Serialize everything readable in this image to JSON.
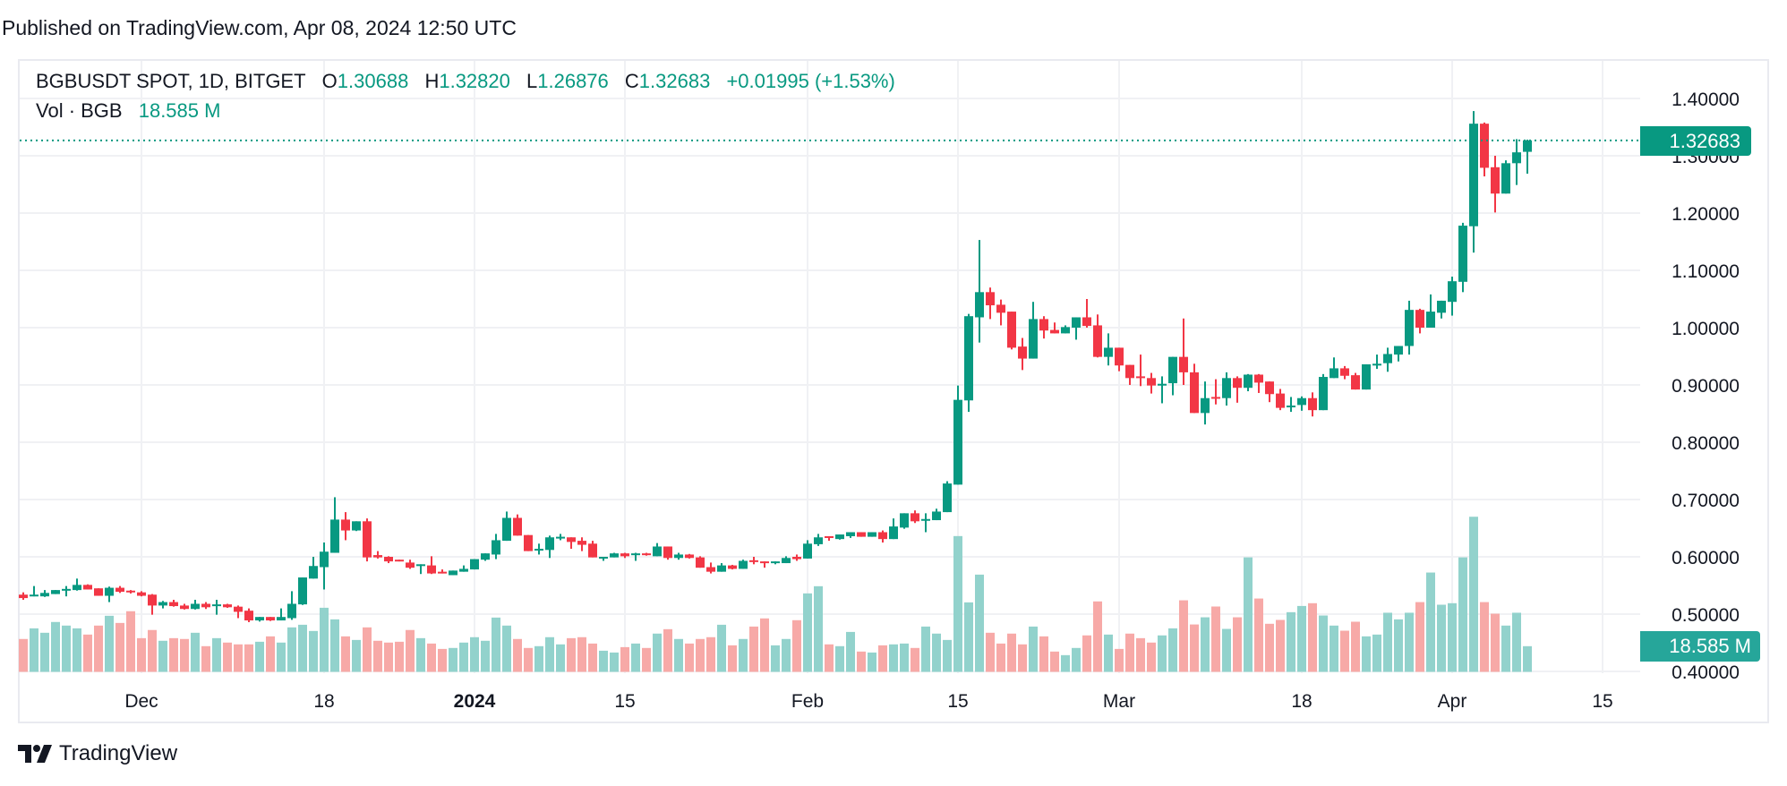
{
  "header": {
    "published": "Published on TradingView.com, Apr 08, 2024 12:50 UTC"
  },
  "legend": {
    "symbol": "BGBUSDT SPOT, 1D, BITGET",
    "open_label": "O",
    "open": "1.30688",
    "high_label": "H",
    "high": "1.32820",
    "low_label": "L",
    "low": "1.26876",
    "close_label": "C",
    "close": "1.32683",
    "change": "+0.01995 (+1.53%)",
    "vol_label": "Vol · BGB",
    "vol_value": "18.585 M"
  },
  "badges": {
    "last_price": "1.32683",
    "last_volume": "18.585 M"
  },
  "footer": {
    "brand": "TradingView"
  },
  "colors": {
    "up": "#089981",
    "down": "#F23645",
    "vol_up": "#92d2cc",
    "vol_down": "#f7a9a7",
    "grid": "#f0f1f4",
    "last_price": "#089981",
    "volume_badge": "#26a69a"
  },
  "chart_data": {
    "type": "candlestick",
    "interval": "1D",
    "symbol": "BGBUSDT",
    "y_axis": {
      "range": [
        0.4,
        1.4
      ],
      "ticks": [
        {
          "value": 1.4,
          "label": "1.40000"
        },
        {
          "value": 1.3,
          "label": "1.30000"
        },
        {
          "value": 1.2,
          "label": "1.20000"
        },
        {
          "value": 1.1,
          "label": "1.10000"
        },
        {
          "value": 1.0,
          "label": "1.00000"
        },
        {
          "value": 0.9,
          "label": "0.90000"
        },
        {
          "value": 0.8,
          "label": "0.80000"
        },
        {
          "value": 0.7,
          "label": "0.70000"
        },
        {
          "value": 0.6,
          "label": "0.60000"
        },
        {
          "value": 0.5,
          "label": "0.50000"
        },
        {
          "value": 0.4,
          "label": "0.40000"
        }
      ]
    },
    "x_axis": {
      "ticks": [
        {
          "date": "2023-12-01",
          "label": "Dec",
          "bold": false
        },
        {
          "date": "2023-12-18",
          "label": "18",
          "bold": false
        },
        {
          "date": "2024-01-01",
          "label": "2024",
          "bold": true
        },
        {
          "date": "2024-01-15",
          "label": "15",
          "bold": false
        },
        {
          "date": "2024-02-01",
          "label": "Feb",
          "bold": false
        },
        {
          "date": "2024-02-15",
          "label": "15",
          "bold": false
        },
        {
          "date": "2024-03-01",
          "label": "Mar",
          "bold": false
        },
        {
          "date": "2024-03-18",
          "label": "18",
          "bold": false
        },
        {
          "date": "2024-04-01",
          "label": "Apr",
          "bold": false
        },
        {
          "date": "2024-04-15",
          "label": "15",
          "bold": false
        }
      ]
    },
    "grid": true,
    "last_price": 1.32683,
    "columns": [
      "date",
      "open",
      "high",
      "low",
      "close",
      "volume_M"
    ],
    "rows": [
      [
        "2023-11-20",
        0.534,
        0.538,
        0.525,
        0.528,
        23.8
      ],
      [
        "2023-11-21",
        0.531,
        0.549,
        0.531,
        0.534,
        31.5
      ],
      [
        "2023-11-22",
        0.531,
        0.542,
        0.53,
        0.537,
        28.3
      ],
      [
        "2023-11-23",
        0.535,
        0.542,
        0.535,
        0.542,
        36.1
      ],
      [
        "2023-11-24",
        0.542,
        0.549,
        0.531,
        0.544,
        33.5
      ],
      [
        "2023-11-25",
        0.542,
        0.562,
        0.541,
        0.551,
        31.5
      ],
      [
        "2023-11-26",
        0.551,
        0.552,
        0.543,
        0.543,
        27.0
      ],
      [
        "2023-11-27",
        0.545,
        0.545,
        0.532,
        0.532,
        33.5
      ],
      [
        "2023-11-28",
        0.532,
        0.548,
        0.521,
        0.546,
        40.6
      ],
      [
        "2023-11-29",
        0.546,
        0.549,
        0.537,
        0.539,
        35.4
      ],
      [
        "2023-11-30",
        0.541,
        0.542,
        0.536,
        0.538,
        43.9
      ],
      [
        "2023-12-01",
        0.538,
        0.54,
        0.531,
        0.532,
        24.4
      ],
      [
        "2023-12-02",
        0.534,
        0.535,
        0.499,
        0.515,
        30.3
      ],
      [
        "2023-12-03",
        0.515,
        0.523,
        0.51,
        0.521,
        22.5
      ],
      [
        "2023-12-04",
        0.521,
        0.525,
        0.513,
        0.514,
        24.4
      ],
      [
        "2023-12-05",
        0.515,
        0.518,
        0.508,
        0.509,
        23.8
      ],
      [
        "2023-12-06",
        0.509,
        0.525,
        0.508,
        0.518,
        28.3
      ],
      [
        "2023-12-07",
        0.518,
        0.521,
        0.509,
        0.512,
        18.6
      ],
      [
        "2023-12-08",
        0.515,
        0.525,
        0.499,
        0.517,
        24.4
      ],
      [
        "2023-12-09",
        0.517,
        0.518,
        0.511,
        0.512,
        21.2
      ],
      [
        "2023-12-10",
        0.513,
        0.515,
        0.493,
        0.504,
        19.9
      ],
      [
        "2023-12-11",
        0.506,
        0.51,
        0.486,
        0.489,
        19.9
      ],
      [
        "2023-12-12",
        0.489,
        0.495,
        0.487,
        0.495,
        21.8
      ],
      [
        "2023-12-13",
        0.495,
        0.495,
        0.488,
        0.489,
        25.7
      ],
      [
        "2023-12-14",
        0.489,
        0.51,
        0.489,
        0.495,
        21.2
      ],
      [
        "2023-12-15",
        0.493,
        0.54,
        0.49,
        0.518,
        32.2
      ],
      [
        "2023-12-16",
        0.517,
        0.564,
        0.516,
        0.564,
        34.1
      ],
      [
        "2023-12-17",
        0.562,
        0.6,
        0.562,
        0.584,
        29.6
      ],
      [
        "2023-12-18",
        0.582,
        0.625,
        0.543,
        0.609,
        46.4
      ],
      [
        "2023-12-19",
        0.607,
        0.704,
        0.607,
        0.665,
        38.0
      ],
      [
        "2023-12-20",
        0.665,
        0.678,
        0.629,
        0.646,
        25.7
      ],
      [
        "2023-12-21",
        0.646,
        0.662,
        0.645,
        0.662,
        23.1
      ],
      [
        "2023-12-22",
        0.662,
        0.667,
        0.592,
        0.599,
        32.2
      ],
      [
        "2023-12-23",
        0.603,
        0.61,
        0.597,
        0.599,
        22.5
      ],
      [
        "2023-12-24",
        0.6,
        0.601,
        0.589,
        0.592,
        21.2
      ],
      [
        "2023-12-25",
        0.595,
        0.595,
        0.592,
        0.592,
        21.8
      ],
      [
        "2023-12-26",
        0.59,
        0.595,
        0.579,
        0.581,
        30.3
      ],
      [
        "2023-12-27",
        0.585,
        0.587,
        0.57,
        0.587,
        24.4
      ],
      [
        "2023-12-28",
        0.585,
        0.601,
        0.57,
        0.571,
        20.5
      ],
      [
        "2023-12-29",
        0.574,
        0.578,
        0.571,
        0.571,
        16.6
      ],
      [
        "2023-12-30",
        0.568,
        0.576,
        0.568,
        0.576,
        17.3
      ],
      [
        "2023-12-31",
        0.574,
        0.585,
        0.574,
        0.579,
        21.2
      ],
      [
        "2024-01-01",
        0.578,
        0.596,
        0.578,
        0.596,
        25.1
      ],
      [
        "2024-01-02",
        0.595,
        0.606,
        0.593,
        0.606,
        22.5
      ],
      [
        "2024-01-03",
        0.604,
        0.64,
        0.596,
        0.629,
        39.3
      ],
      [
        "2024-01-04",
        0.628,
        0.679,
        0.628,
        0.668,
        33.5
      ],
      [
        "2024-01-05",
        0.668,
        0.674,
        0.637,
        0.637,
        23.8
      ],
      [
        "2024-01-06",
        0.638,
        0.638,
        0.61,
        0.61,
        17.3
      ],
      [
        "2024-01-07",
        0.612,
        0.623,
        0.604,
        0.614,
        18.6
      ],
      [
        "2024-01-08",
        0.612,
        0.637,
        0.598,
        0.634,
        25.1
      ],
      [
        "2024-01-09",
        0.633,
        0.64,
        0.629,
        0.635,
        19.9
      ],
      [
        "2024-01-10",
        0.634,
        0.634,
        0.614,
        0.626,
        24.4
      ],
      [
        "2024-01-11",
        0.628,
        0.634,
        0.61,
        0.621,
        25.1
      ],
      [
        "2024-01-12",
        0.623,
        0.628,
        0.599,
        0.599,
        20.5
      ],
      [
        "2024-01-13",
        0.598,
        0.6,
        0.593,
        0.6,
        15.3
      ],
      [
        "2024-01-14",
        0.599,
        0.607,
        0.599,
        0.606,
        14.0
      ],
      [
        "2024-01-15",
        0.606,
        0.607,
        0.598,
        0.601,
        17.9
      ],
      [
        "2024-01-16",
        0.603,
        0.607,
        0.593,
        0.606,
        20.5
      ],
      [
        "2024-01-17",
        0.606,
        0.607,
        0.602,
        0.603,
        17.3
      ],
      [
        "2024-01-18",
        0.601,
        0.624,
        0.601,
        0.618,
        27.7
      ],
      [
        "2024-01-19",
        0.618,
        0.618,
        0.595,
        0.598,
        30.9
      ],
      [
        "2024-01-20",
        0.598,
        0.607,
        0.595,
        0.604,
        23.8
      ],
      [
        "2024-01-21",
        0.604,
        0.605,
        0.597,
        0.598,
        20.5
      ],
      [
        "2024-01-22",
        0.599,
        0.601,
        0.581,
        0.581,
        23.8
      ],
      [
        "2024-01-23",
        0.582,
        0.59,
        0.571,
        0.574,
        25.1
      ],
      [
        "2024-01-24",
        0.574,
        0.589,
        0.574,
        0.585,
        34.1
      ],
      [
        "2024-01-25",
        0.585,
        0.586,
        0.578,
        0.579,
        19.2
      ],
      [
        "2024-01-26",
        0.579,
        0.595,
        0.579,
        0.593,
        23.8
      ],
      [
        "2024-01-27",
        0.594,
        0.6,
        0.587,
        0.592,
        32.8
      ],
      [
        "2024-01-28",
        0.592,
        0.592,
        0.581,
        0.589,
        38.7
      ],
      [
        "2024-01-29",
        0.589,
        0.592,
        0.587,
        0.592,
        19.2
      ],
      [
        "2024-01-30",
        0.589,
        0.601,
        0.589,
        0.598,
        23.8
      ],
      [
        "2024-01-31",
        0.6,
        0.604,
        0.593,
        0.596,
        37.4
      ],
      [
        "2024-02-01",
        0.597,
        0.629,
        0.597,
        0.623,
        56.8
      ],
      [
        "2024-02-02",
        0.622,
        0.64,
        0.619,
        0.634,
        62.0
      ],
      [
        "2024-02-03",
        0.636,
        0.636,
        0.628,
        0.633,
        19.9
      ],
      [
        "2024-02-04",
        0.631,
        0.639,
        0.63,
        0.639,
        18.6
      ],
      [
        "2024-02-05",
        0.636,
        0.643,
        0.633,
        0.643,
        28.9
      ],
      [
        "2024-02-06",
        0.643,
        0.643,
        0.635,
        0.635,
        14.7
      ],
      [
        "2024-02-07",
        0.635,
        0.643,
        0.635,
        0.643,
        14.0
      ],
      [
        "2024-02-08",
        0.643,
        0.646,
        0.625,
        0.631,
        19.2
      ],
      [
        "2024-02-09",
        0.631,
        0.667,
        0.631,
        0.653,
        19.9
      ],
      [
        "2024-02-10",
        0.651,
        0.676,
        0.649,
        0.676,
        20.5
      ],
      [
        "2024-02-11",
        0.676,
        0.681,
        0.659,
        0.662,
        17.3
      ],
      [
        "2024-02-12",
        0.664,
        0.676,
        0.643,
        0.666,
        32.8
      ],
      [
        "2024-02-13",
        0.664,
        0.684,
        0.664,
        0.679,
        27.7
      ],
      [
        "2024-02-14",
        0.678,
        0.732,
        0.678,
        0.728,
        23.1
      ],
      [
        "2024-02-15",
        0.726,
        0.899,
        0.726,
        0.874,
        98.3
      ],
      [
        "2024-02-16",
        0.873,
        1.024,
        0.853,
        1.02,
        50.3
      ],
      [
        "2024-02-17",
        1.018,
        1.153,
        0.974,
        1.062,
        70.4
      ],
      [
        "2024-02-18",
        1.062,
        1.07,
        1.015,
        1.039,
        28.3
      ],
      [
        "2024-02-19",
        1.04,
        1.049,
        1.004,
        1.026,
        20.5
      ],
      [
        "2024-02-20",
        1.028,
        1.028,
        0.962,
        0.965,
        27.7
      ],
      [
        "2024-02-21",
        0.967,
        0.982,
        0.926,
        0.946,
        19.9
      ],
      [
        "2024-02-22",
        0.946,
        1.045,
        0.946,
        1.015,
        32.8
      ],
      [
        "2024-02-23",
        1.015,
        1.02,
        0.981,
        0.995,
        25.7
      ],
      [
        "2024-02-24",
        0.996,
        1.009,
        0.99,
        0.99,
        14.7
      ],
      [
        "2024-02-25",
        0.99,
        1.004,
        0.99,
        1.001,
        12.1
      ],
      [
        "2024-02-26",
        1.0,
        1.018,
        0.979,
        1.018,
        17.3
      ],
      [
        "2024-02-27",
        1.018,
        1.05,
        1.0,
        1.003,
        26.4
      ],
      [
        "2024-02-28",
        1.004,
        1.023,
        0.948,
        0.949,
        51.0
      ],
      [
        "2024-02-29",
        0.949,
        0.99,
        0.934,
        0.965,
        27.0
      ],
      [
        "2024-03-01",
        0.965,
        0.965,
        0.924,
        0.934,
        16.6
      ],
      [
        "2024-03-02",
        0.935,
        0.935,
        0.9,
        0.912,
        27.7
      ],
      [
        "2024-03-03",
        0.915,
        0.953,
        0.898,
        0.913,
        24.4
      ],
      [
        "2024-03-04",
        0.912,
        0.921,
        0.885,
        0.899,
        21.2
      ],
      [
        "2024-03-05",
        0.9,
        0.915,
        0.868,
        0.902,
        26.4
      ],
      [
        "2024-03-06",
        0.903,
        0.949,
        0.882,
        0.949,
        31.5
      ],
      [
        "2024-03-07",
        0.949,
        1.016,
        0.9,
        0.922,
        51.8
      ],
      [
        "2024-03-08",
        0.922,
        0.937,
        0.851,
        0.851,
        34.3
      ],
      [
        "2024-03-09",
        0.851,
        0.906,
        0.831,
        0.877,
        39.5
      ],
      [
        "2024-03-10",
        0.879,
        0.91,
        0.866,
        0.878,
        47.3
      ],
      [
        "2024-03-11",
        0.877,
        0.922,
        0.864,
        0.912,
        31.1
      ],
      [
        "2024-03-12",
        0.912,
        0.915,
        0.869,
        0.895,
        39.5
      ],
      [
        "2024-03-13",
        0.895,
        0.919,
        0.889,
        0.918,
        82.9
      ],
      [
        "2024-03-14",
        0.918,
        0.919,
        0.886,
        0.904,
        53.1
      ],
      [
        "2024-03-15",
        0.906,
        0.906,
        0.87,
        0.884,
        34.8
      ],
      [
        "2024-03-16",
        0.885,
        0.893,
        0.856,
        0.86,
        37.6
      ],
      [
        "2024-03-17",
        0.862,
        0.879,
        0.853,
        0.864,
        43.2
      ],
      [
        "2024-03-18",
        0.865,
        0.88,
        0.855,
        0.877,
        47.7
      ],
      [
        "2024-03-19",
        0.877,
        0.887,
        0.845,
        0.856,
        49.7
      ],
      [
        "2024-03-20",
        0.856,
        0.919,
        0.856,
        0.914,
        40.8
      ],
      [
        "2024-03-21",
        0.912,
        0.948,
        0.912,
        0.929,
        33.5
      ],
      [
        "2024-03-22",
        0.929,
        0.933,
        0.91,
        0.916,
        29.8
      ],
      [
        "2024-03-23",
        0.917,
        0.921,
        0.892,
        0.892,
        36.3
      ],
      [
        "2024-03-24",
        0.892,
        0.936,
        0.892,
        0.936,
        25.7
      ],
      [
        "2024-03-25",
        0.936,
        0.953,
        0.928,
        0.937,
        27.0
      ],
      [
        "2024-03-26",
        0.938,
        0.965,
        0.923,
        0.954,
        42.8
      ],
      [
        "2024-03-27",
        0.953,
        0.968,
        0.941,
        0.968,
        38.0
      ],
      [
        "2024-03-28",
        0.968,
        1.047,
        0.953,
        1.031,
        42.8
      ],
      [
        "2024-03-29",
        1.031,
        1.033,
        0.99,
        1.0,
        50.5
      ],
      [
        "2024-03-30",
        1.0,
        1.058,
        1.0,
        1.028,
        71.9
      ],
      [
        "2024-03-31",
        1.026,
        1.047,
        1.016,
        1.047,
        48.6
      ],
      [
        "2024-04-01",
        1.045,
        1.089,
        1.021,
        1.081,
        49.7
      ],
      [
        "2024-04-02",
        1.08,
        1.183,
        1.062,
        1.178,
        82.9
      ],
      [
        "2024-04-03",
        1.177,
        1.378,
        1.131,
        1.356,
        112.3
      ],
      [
        "2024-04-04",
        1.356,
        1.358,
        1.264,
        1.279,
        50.5
      ],
      [
        "2024-04-05",
        1.28,
        1.3,
        1.201,
        1.234,
        42.1
      ],
      [
        "2024-04-06",
        1.234,
        1.292,
        1.234,
        1.287,
        33.5
      ],
      [
        "2024-04-07",
        1.287,
        1.329,
        1.249,
        1.306,
        42.8
      ],
      [
        "2024-04-08",
        1.30688,
        1.3282,
        1.26876,
        1.32683,
        18.585
      ]
    ]
  }
}
